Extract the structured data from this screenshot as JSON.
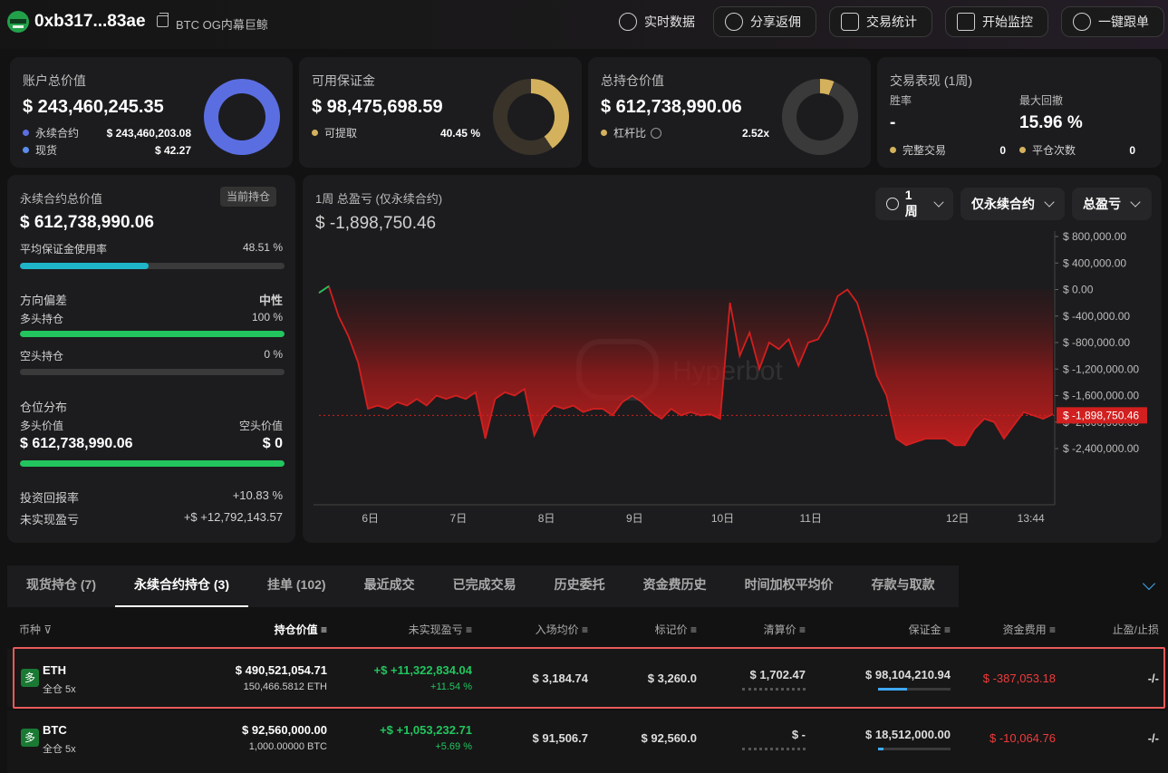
{
  "header": {
    "address": "0xb317...83ae",
    "tag": "BTC OG内幕巨鲸",
    "buttons": {
      "realtime": "实时数据",
      "share": "分享返佣",
      "stats": "交易统计",
      "monitor": "开始监控",
      "copy": "一键跟单"
    }
  },
  "account": {
    "title": "账户总价值",
    "total": "$ 243,460,245.35",
    "perp_label": "永续合约",
    "perp_value": "$ 243,460,203.08",
    "spot_label": "现货",
    "spot_value": "$ 42.27",
    "perp_share": 0.9999
  },
  "margin": {
    "title": "可用保证金",
    "value": "$ 98,475,698.59",
    "withdraw_label": "可提取",
    "withdraw_value": "40.45 %",
    "withdraw_fraction": 0.4045
  },
  "position": {
    "title": "总持仓价值",
    "value": "$ 612,738,990.06",
    "leverage_label": "杠杆比",
    "leverage_value": "2.52x",
    "leverage_fraction": 0.06
  },
  "performance": {
    "title": "交易表现 (1周)",
    "winrate_label": "胜率",
    "winrate_value": "-",
    "drawdown_label": "最大回撤",
    "drawdown_value": "15.96 %",
    "full_trades_label": "完整交易",
    "full_trades_value": "0",
    "close_count_label": "平仓次数",
    "close_count_value": "0"
  },
  "perp_panel": {
    "title": "永续合约总价值",
    "chip": "当前持仓",
    "value": "$ 612,738,990.06",
    "margin_usage_label": "平均保证金使用率",
    "margin_usage_value": "48.51 %",
    "margin_usage_fraction": 0.4851,
    "bias_label": "方向偏差",
    "bias_value": "中性",
    "long_label": "多头持仓",
    "long_value": "100 %",
    "long_fraction": 1,
    "short_label": "空头持仓",
    "short_value": "0 %",
    "short_fraction": 0,
    "dist_label": "仓位分布",
    "long_value_label": "多头价值",
    "short_value_label": "空头价值",
    "long_amount": "$ 612,738,990.06",
    "short_amount": "$ 0",
    "roi_label": "投资回报率",
    "roi_value": "+10.83 %",
    "unrealized_label": "未实现盈亏",
    "unrealized_value": "+$ +12,792,143.57"
  },
  "chart_panel": {
    "title": "1周 总盈亏 (仅永续合约)",
    "value": "$ -1,898,750.46",
    "period": "1周",
    "scope": "仅永续合约",
    "metric": "总盈亏",
    "watermark": "Hyperbot"
  },
  "chart_data": {
    "type": "area",
    "x_labels": [
      "6日",
      "7日",
      "8日",
      "9日",
      "10日",
      "11日",
      "12日",
      "13:44"
    ],
    "y_ticks": [
      "$ 800,000.00",
      "$ 400,000.00",
      "$ 0.00",
      "$ -400,000.00",
      "$ -800,000.00",
      "$ -1,200,000.00",
      "$ -1,600,000.00",
      "$ -2,000,000.00",
      "$ -2,400,000.00"
    ],
    "ylim": [
      -2600000,
      800000
    ],
    "current_label": "$ -1,898,750.46",
    "current_value": -1898750.46,
    "values": [
      -50000,
      50000,
      -400000,
      -700000,
      -1100000,
      -1800000,
      -1750000,
      -1800000,
      -1700000,
      -1750000,
      -1650000,
      -1750000,
      -1600000,
      -1650000,
      -1600000,
      -1650000,
      -1550000,
      -2250000,
      -1650000,
      -1550000,
      -1600000,
      -1500000,
      -2200000,
      -1900000,
      -1750000,
      -1800000,
      -1750000,
      -1850000,
      -1800000,
      -1800000,
      -1900000,
      -1700000,
      -1600000,
      -1700000,
      -1850000,
      -1950000,
      -1800000,
      -1900000,
      -1850000,
      -1900000,
      -1880000,
      -1950000,
      -200000,
      -1000000,
      -650000,
      -1200000,
      -800000,
      -900000,
      -750000,
      -1150000,
      -800000,
      -750000,
      -500000,
      -100000,
      0,
      -200000,
      -700000,
      -1300000,
      -1600000,
      -2250000,
      -2350000,
      -2300000,
      -2250000,
      -2250000,
      -2250000,
      -2350000,
      -2350000,
      -2100000,
      -1950000,
      -2000000,
      -2250000,
      -2050000,
      -1850000,
      -1900000,
      -1950000,
      -1880000
    ]
  },
  "tabs": [
    "现货持仓 (7)",
    "永续合约持仓 (3)",
    "挂单 (102)",
    "最近成交",
    "已完成交易",
    "历史委托",
    "资金费历史",
    "时间加权平均价",
    "存款与取款"
  ],
  "table": {
    "headers": {
      "coin": "币种",
      "value": "持仓价值",
      "pnl": "未实现盈亏",
      "entry": "入场均价",
      "mark": "标记价",
      "liq": "清算价",
      "margin": "保证金",
      "funding": "资金费用",
      "tpsl": "止盈/止损"
    },
    "rows": [
      {
        "badge": "多",
        "coin": "ETH",
        "mode": "全仓 5x",
        "value": "$ 490,521,054.71",
        "size": "150,466.5812 ETH",
        "pnl": "+$ +11,322,834.04",
        "pnl_pct": "+11.54 %",
        "entry": "$ 3,184.74",
        "mark": "$ 3,260.0",
        "liq": "$ 1,702.47",
        "margin": "$ 98,104,210.94",
        "margin_fraction": 0.4,
        "funding": "$ -387,053.18",
        "tpsl": "-/-"
      },
      {
        "badge": "多",
        "coin": "BTC",
        "mode": "全仓 5x",
        "value": "$ 92,560,000.00",
        "size": "1,000.00000 BTC",
        "pnl": "+$ +1,053,232.71",
        "pnl_pct": "+5.69 %",
        "entry": "$ 91,506.7",
        "mark": "$ 92,560.0",
        "liq": "$ -",
        "margin": "$ 18,512,000.00",
        "margin_fraction": 0.08,
        "funding": "$ -10,064.76",
        "tpsl": "-/-"
      }
    ]
  }
}
